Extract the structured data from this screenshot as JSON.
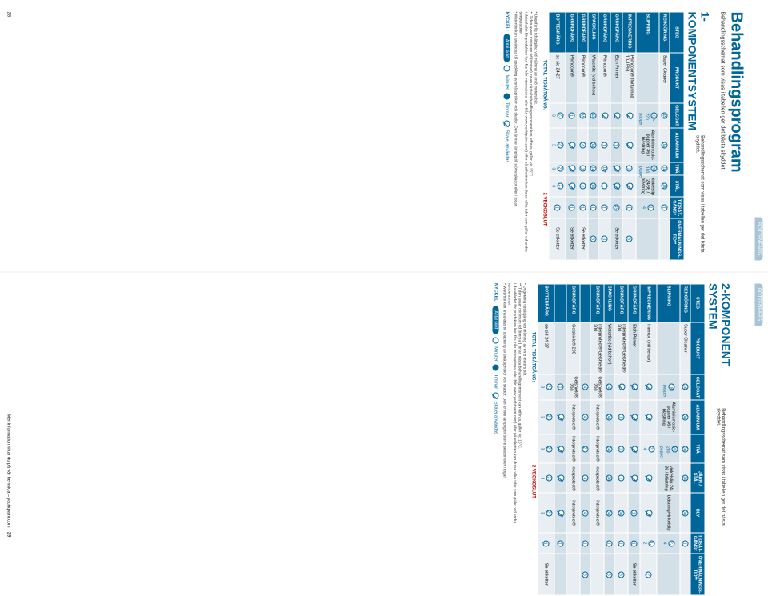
{
  "header_tab": "BOTTENFÄRG",
  "main_title": "Behandlingsprogram",
  "main_subtitle": "Behandlingsschemat som visas i tabellen ger det bästa skyddet.",
  "section1_title": "1-KOMPONENTSYSTEM",
  "section1_sub": "Behandlingsschemat som visas i tabellen ger det bästa skyddet.",
  "section2_title": "2-KOMPONENT SYSTEM",
  "section2_sub": "Behandlingsschemat som visas i tabellen ger det bästa skyddet.",
  "columns": [
    "STEG",
    "PRODUKT",
    "GELCOAT",
    "ALUMINIUM",
    "TRÄ",
    "STÅL",
    "TIDSÅT-GÅNG*",
    "ÖVERMÅLNINGS-TID**"
  ],
  "columns2": [
    "STEG",
    "PRODUKT",
    "GELCOAT",
    "ALUMINIUM",
    "TRÄ",
    "JÄRN / STÅL",
    "BLY",
    "TIDSÅT-GÅNG*",
    "ÖVERMÅLNINGS-TID**"
  ],
  "table1_rows": [
    {
      "step": "RENGÖRING",
      "prod": "Super Cleaner",
      "c": [
        "JA",
        "JA",
        "JA",
        "JA",
        "1",
        ""
      ]
    },
    {
      "step": "SLIPNING",
      "prod": "",
      "c": [
        "180-220 papper",
        "Aluminiumoxid-papper 36 / blästring",
        "80-180 papper",
        "vinkelslip 24/36 / blästring",
        "2-4",
        ""
      ]
    },
    {
      "step": "IMPREGNERING",
      "prod": "Primocon® (förtunnad 10-15%)",
      "c": [
        "Ø",
        "Ø",
        "1",
        "Ø",
        "1",
        "3"
      ]
    },
    {
      "step": "GRUNDFÄRG",
      "prod": "Etch Primer",
      "c": [
        "Ø",
        "1",
        "Ø",
        "Ø",
        "45",
        "Se etiketten"
      ]
    },
    {
      "step": "GRUNDFÄRG",
      "prod": "Primocon®",
      "c": [
        "Ø",
        "1",
        "JA*",
        "1",
        "1",
        "3"
      ]
    },
    {
      "step": "SPACKLING",
      "prod": "Watertite (vid behov)",
      "c": [
        "JA",
        "JA",
        "JA",
        "JA",
        "1",
        "6"
      ]
    },
    {
      "step": "GRUNDFÄRG",
      "prod": "Primocon®",
      "c": [
        "JA",
        "4",
        "2",
        "4",
        "1",
        "Se etiketten"
      ]
    },
    {
      "step": "GRUNDFÄRG",
      "prod": "Primocon®",
      "c": [
        "1",
        "Ø",
        "Ø",
        "Ø",
        "1",
        "Se etiketten"
      ]
    },
    {
      "step": "BOTTENFÄRG",
      "prod": "se sid 24-27",
      "c": [
        "2-3",
        "2-3",
        "2-3",
        "2-3",
        "1",
        "Se etiketten"
      ]
    }
  ],
  "table2_rows": [
    {
      "step": "RENGÖRING",
      "prod": "Super Cleaner",
      "c": [
        "JA",
        "JA",
        "JA",
        "JA",
        "JA",
        "1",
        ""
      ]
    },
    {
      "step": "SLIPNING",
      "prod": "",
      "c": [
        "180 papper",
        "Aluminiumoxid-papper 36 / blästring",
        "80-280 papper",
        "vinkelslip 24-36 / blästring",
        "blästring/vinkelslip",
        "2-4",
        ""
      ]
    },
    {
      "step": "IMPREGNERING",
      "prod": "Intertox (vid behov)",
      "c": [
        "Ø",
        "Ø",
        "2-4",
        "Ø",
        "Ø",
        "1-2",
        "2"
      ]
    },
    {
      "step": "GRUNDFÄRG",
      "prod": "Etch Primer",
      "c": [
        "Ø",
        "Ø",
        "Ø",
        "Ø",
        "1",
        "1",
        "Se etiketten"
      ]
    },
    {
      "step": "GRUNDFÄRG",
      "prod": "Interprotect®/Gelshield® 200",
      "c": [
        "Ø",
        "1",
        "1",
        "1",
        "JA",
        "1",
        "5"
      ]
    },
    {
      "step": "SPACKLING",
      "prod": "Watertite (vid behov)",
      "c": [
        "JA",
        "JA",
        "JA",
        "JA",
        "JA",
        "1",
        "6"
      ]
    },
    {
      "step": "GRUNDFÄRG",
      "prod": "Interprotect®/Gelshield® 200",
      "c": [
        "Gelshield® 200",
        "Interprotect®",
        "Interprotect®",
        "Interprotect®",
        "Interprotect®",
        "",
        ""
      ]
    },
    {
      "step": "",
      "prod": "",
      "c": [
        "4",
        "4",
        "2*",
        "4",
        "4",
        "1",
        "5"
      ]
    },
    {
      "step": "GRUNDFÄRG",
      "prod": "Gelshield® 200",
      "c": [
        "Gelshield® 200",
        "Interprotect®",
        "Interprotect®",
        "Interprotect®",
        "Interprotect®",
        "",
        ""
      ]
    },
    {
      "step": "",
      "prod": "",
      "c": [
        "1",
        "Ø",
        "Ø",
        "Ø",
        "Ø",
        "1",
        ""
      ]
    },
    {
      "step": "BOTTENFÄRG",
      "prod": "se sid 24-27",
      "c": [
        "2-3",
        "2-3",
        "2-3",
        "2-3",
        "2-3",
        "1",
        "Se etiketten"
      ]
    }
  ],
  "total_label": "TOTAL TIDSÅTGÅNG:",
  "total_value": "2 VECKOSLUT",
  "note1": "* Ungefärlig tidsåtgång vid målning av en 8 meters båt.",
  "note2": "** Tiden avser minimum tid (timmar) innan nästa behandlingsmoment kan utföras, gäller vid 15°C.",
  "note3": "I databladet för produkten kan fås från International eller från www.yachtpaint.com) eller på etiketten kan du se vilka tider som gäller vid andra temperaturer.",
  "note4": "* Watertite kan användas till spackling av små sprickor och skador. Den är inte lämplig till större skador eller i fogar.",
  "key_label": "NYCKEL:",
  "key_pill1": "Antal skikt",
  "key_item1": "Minuter",
  "key_item2": "Timmar",
  "key_item3": "Ska ej användas",
  "footer_left_num": "28",
  "footer_right_num": "29",
  "footer_right_text": "Mer information hittar du på vår hemsida – yachtpaint.com",
  "colors": {
    "brand_blue": "#006699",
    "light_row": "#e8eef2",
    "alt_row": "#d4e0e8",
    "tab_bg": "#a8c5d6"
  }
}
